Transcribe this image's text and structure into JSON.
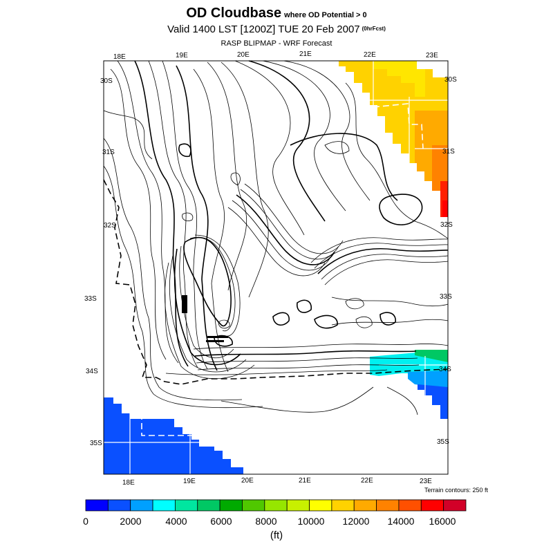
{
  "title": {
    "main": "OD Cloudbase",
    "condition": "where OD Potential > 0",
    "valid": "Valid 1400 LST [1200Z] TUE 20 Feb 2007",
    "forecast_tag": "(0hrFcst)",
    "subtitle": "RASP BLIPMAP - WRF Forecast"
  },
  "axes": {
    "top_longitudes": [
      "18E",
      "19E",
      "20E",
      "21E",
      "22E",
      "23E"
    ],
    "bottom_longitudes": [
      "18E",
      "19E",
      "20E",
      "21E",
      "22E",
      "23E"
    ],
    "left_latitudes": [
      "30S",
      "31S",
      "32S",
      "33S",
      "34S",
      "35S"
    ],
    "right_latitudes": [
      "30S",
      "31S",
      "32S",
      "33S",
      "34S",
      "35S"
    ]
  },
  "terrain_note": "Terrain contours: 250 ft",
  "colorbar": {
    "colors": [
      "#0000ff",
      "#0a50ff",
      "#00a0ff",
      "#00ffff",
      "#00e6a0",
      "#00c864",
      "#00aa00",
      "#50c800",
      "#96e600",
      "#c8f000",
      "#ffff00",
      "#ffd200",
      "#ffaa00",
      "#ff8200",
      "#ff5000",
      "#ff0000",
      "#d20028"
    ],
    "tick_labels": [
      "0",
      "2000",
      "4000",
      "6000",
      "8000",
      "10000",
      "12000",
      "14000",
      "16000"
    ],
    "unit": "(ft)"
  }
}
